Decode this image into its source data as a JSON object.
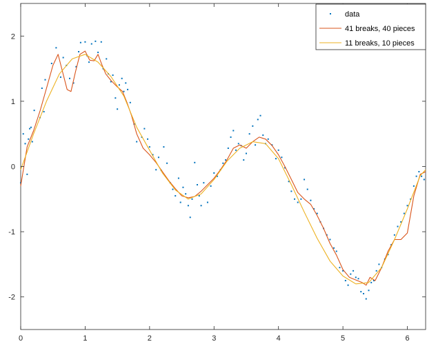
{
  "chart_data": {
    "type": "line",
    "title": "",
    "xlabel": "",
    "ylabel": "",
    "xlim": [
      0,
      6.2832
    ],
    "ylim": [
      -2.5,
      2.5
    ],
    "xticks": [
      0,
      1,
      2,
      3,
      4,
      5,
      6
    ],
    "yticks": [
      -2,
      -1,
      0,
      1,
      2
    ],
    "x_tick_labels": [
      "0",
      "1",
      "2",
      "3",
      "4",
      "5",
      "6"
    ],
    "y_tick_labels": [
      "-2",
      "-1",
      "0",
      "1",
      "2"
    ],
    "grid": false,
    "legend_position": "top-right",
    "series": [
      {
        "name": "data",
        "type": "scatter",
        "color": "#0072BD",
        "points": [
          [
            0.0,
            -0.25
          ],
          [
            0.04,
            0.5
          ],
          [
            0.07,
            0.35
          ],
          [
            0.1,
            -0.12
          ],
          [
            0.12,
            0.42
          ],
          [
            0.14,
            0.58
          ],
          [
            0.16,
            0.6
          ],
          [
            0.18,
            0.38
          ],
          [
            0.21,
            0.86
          ],
          [
            0.3,
            0.75
          ],
          [
            0.33,
            1.2
          ],
          [
            0.36,
            0.84
          ],
          [
            0.38,
            1.33
          ],
          [
            0.48,
            1.58
          ],
          [
            0.55,
            1.82
          ],
          [
            0.62,
            1.37
          ],
          [
            0.66,
            1.67
          ],
          [
            0.71,
            1.55
          ],
          [
            0.76,
            1.35
          ],
          [
            0.82,
            1.28
          ],
          [
            0.86,
            1.53
          ],
          [
            0.9,
            1.76
          ],
          [
            0.93,
            1.9
          ],
          [
            1.0,
            1.91
          ],
          [
            1.03,
            1.7
          ],
          [
            1.06,
            1.6
          ],
          [
            1.1,
            1.88
          ],
          [
            1.16,
            1.92
          ],
          [
            1.2,
            1.75
          ],
          [
            1.25,
            1.91
          ],
          [
            1.28,
            1.5
          ],
          [
            1.33,
            1.65
          ],
          [
            1.36,
            1.42
          ],
          [
            1.4,
            1.3
          ],
          [
            1.43,
            1.4
          ],
          [
            1.47,
            1.05
          ],
          [
            1.5,
            0.88
          ],
          [
            1.53,
            1.25
          ],
          [
            1.57,
            1.35
          ],
          [
            1.6,
            1.15
          ],
          [
            1.63,
            1.28
          ],
          [
            1.66,
            1.18
          ],
          [
            1.7,
            0.98
          ],
          [
            1.76,
            0.65
          ],
          [
            1.8,
            0.38
          ],
          [
            1.88,
            0.45
          ],
          [
            1.92,
            0.58
          ],
          [
            1.97,
            0.42
          ],
          [
            2.0,
            0.3
          ],
          [
            2.05,
            0.18
          ],
          [
            2.1,
            -0.05
          ],
          [
            2.14,
            0.14
          ],
          [
            2.18,
            -0.06
          ],
          [
            2.22,
            0.3
          ],
          [
            2.27,
            0.05
          ],
          [
            2.32,
            -0.25
          ],
          [
            2.36,
            -0.35
          ],
          [
            2.4,
            -0.45
          ],
          [
            2.45,
            -0.18
          ],
          [
            2.48,
            -0.55
          ],
          [
            2.52,
            -0.32
          ],
          [
            2.56,
            -0.42
          ],
          [
            2.6,
            -0.6
          ],
          [
            2.63,
            -0.78
          ],
          [
            2.66,
            -0.5
          ],
          [
            2.7,
            0.06
          ],
          [
            2.74,
            -0.28
          ],
          [
            2.77,
            -0.45
          ],
          [
            2.8,
            -0.6
          ],
          [
            2.84,
            -0.25
          ],
          [
            2.9,
            -0.55
          ],
          [
            2.95,
            -0.3
          ],
          [
            3.0,
            -0.1
          ],
          [
            3.05,
            -0.15
          ],
          [
            3.1,
            -0.05
          ],
          [
            3.14,
            0.05
          ],
          [
            3.18,
            0.1
          ],
          [
            3.22,
            0.28
          ],
          [
            3.26,
            0.45
          ],
          [
            3.3,
            0.55
          ],
          [
            3.34,
            0.25
          ],
          [
            3.38,
            0.35
          ],
          [
            3.42,
            0.32
          ],
          [
            3.46,
            0.1
          ],
          [
            3.5,
            0.2
          ],
          [
            3.55,
            0.5
          ],
          [
            3.6,
            0.62
          ],
          [
            3.64,
            0.33
          ],
          [
            3.68,
            0.72
          ],
          [
            3.72,
            0.78
          ],
          [
            3.76,
            0.48
          ],
          [
            3.8,
            0.35
          ],
          [
            3.84,
            0.42
          ],
          [
            3.9,
            0.33
          ],
          [
            3.96,
            0.12
          ],
          [
            4.0,
            0.25
          ],
          [
            4.05,
            0.14
          ],
          [
            4.1,
            -0.02
          ],
          [
            4.16,
            -0.23
          ],
          [
            4.2,
            -0.38
          ],
          [
            4.25,
            -0.5
          ],
          [
            4.3,
            -0.55
          ],
          [
            4.35,
            -0.5
          ],
          [
            4.4,
            -0.2
          ],
          [
            4.45,
            -0.35
          ],
          [
            4.5,
            -0.52
          ],
          [
            4.55,
            -0.65
          ],
          [
            4.6,
            -0.72
          ],
          [
            4.65,
            -0.85
          ],
          [
            4.7,
            -0.95
          ],
          [
            4.75,
            -1.05
          ],
          [
            4.8,
            -1.12
          ],
          [
            4.86,
            -1.25
          ],
          [
            4.9,
            -1.3
          ],
          [
            4.95,
            -1.55
          ],
          [
            5.0,
            -1.6
          ],
          [
            5.04,
            -1.75
          ],
          [
            5.08,
            -1.82
          ],
          [
            5.12,
            -1.65
          ],
          [
            5.16,
            -1.6
          ],
          [
            5.2,
            -1.7
          ],
          [
            5.24,
            -1.72
          ],
          [
            5.28,
            -1.92
          ],
          [
            5.32,
            -1.95
          ],
          [
            5.36,
            -2.03
          ],
          [
            5.4,
            -1.9
          ],
          [
            5.44,
            -1.78
          ],
          [
            5.48,
            -1.75
          ],
          [
            5.52,
            -1.6
          ],
          [
            5.56,
            -1.5
          ],
          [
            5.6,
            -1.55
          ],
          [
            5.65,
            -1.42
          ],
          [
            5.7,
            -1.35
          ],
          [
            5.75,
            -1.2
          ],
          [
            5.8,
            -1.05
          ],
          [
            5.85,
            -0.92
          ],
          [
            5.9,
            -0.85
          ],
          [
            5.95,
            -0.72
          ],
          [
            6.0,
            -0.6
          ],
          [
            6.05,
            -0.5
          ],
          [
            6.1,
            -0.3
          ],
          [
            6.14,
            -0.15
          ],
          [
            6.18,
            -0.08
          ],
          [
            6.22,
            -0.15
          ],
          [
            6.26,
            -0.2
          ]
        ]
      },
      {
        "name": "41 breaks, 40 pieces",
        "type": "line",
        "color": "#D95319",
        "points": [
          [
            0.0,
            -0.3
          ],
          [
            0.1,
            0.3
          ],
          [
            0.2,
            0.55
          ],
          [
            0.3,
            0.85
          ],
          [
            0.4,
            1.2
          ],
          [
            0.5,
            1.55
          ],
          [
            0.58,
            1.72
          ],
          [
            0.65,
            1.45
          ],
          [
            0.72,
            1.18
          ],
          [
            0.78,
            1.15
          ],
          [
            0.85,
            1.45
          ],
          [
            0.92,
            1.72
          ],
          [
            1.0,
            1.77
          ],
          [
            1.07,
            1.63
          ],
          [
            1.14,
            1.62
          ],
          [
            1.2,
            1.72
          ],
          [
            1.26,
            1.56
          ],
          [
            1.32,
            1.42
          ],
          [
            1.4,
            1.32
          ],
          [
            1.5,
            1.22
          ],
          [
            1.58,
            1.15
          ],
          [
            1.65,
            0.98
          ],
          [
            1.72,
            0.78
          ],
          [
            1.8,
            0.5
          ],
          [
            1.9,
            0.28
          ],
          [
            2.0,
            0.18
          ],
          [
            2.1,
            0.06
          ],
          [
            2.2,
            -0.08
          ],
          [
            2.3,
            -0.22
          ],
          [
            2.4,
            -0.34
          ],
          [
            2.5,
            -0.45
          ],
          [
            2.6,
            -0.48
          ],
          [
            2.7,
            -0.46
          ],
          [
            2.8,
            -0.38
          ],
          [
            2.9,
            -0.28
          ],
          [
            3.0,
            -0.18
          ],
          [
            3.1,
            -0.05
          ],
          [
            3.2,
            0.1
          ],
          [
            3.3,
            0.28
          ],
          [
            3.4,
            0.33
          ],
          [
            3.5,
            0.28
          ],
          [
            3.6,
            0.38
          ],
          [
            3.7,
            0.45
          ],
          [
            3.8,
            0.42
          ],
          [
            3.9,
            0.32
          ],
          [
            4.0,
            0.18
          ],
          [
            4.1,
            0.0
          ],
          [
            4.2,
            -0.2
          ],
          [
            4.3,
            -0.4
          ],
          [
            4.4,
            -0.5
          ],
          [
            4.5,
            -0.58
          ],
          [
            4.6,
            -0.75
          ],
          [
            4.7,
            -0.95
          ],
          [
            4.8,
            -1.18
          ],
          [
            4.9,
            -1.36
          ],
          [
            5.0,
            -1.58
          ],
          [
            5.1,
            -1.7
          ],
          [
            5.2,
            -1.74
          ],
          [
            5.3,
            -1.78
          ],
          [
            5.36,
            -1.82
          ],
          [
            5.42,
            -1.7
          ],
          [
            5.5,
            -1.75
          ],
          [
            5.6,
            -1.55
          ],
          [
            5.7,
            -1.3
          ],
          [
            5.8,
            -1.12
          ],
          [
            5.9,
            -1.12
          ],
          [
            6.0,
            -1.02
          ],
          [
            6.1,
            -0.45
          ],
          [
            6.2,
            -0.12
          ],
          [
            6.2832,
            -0.08
          ]
        ]
      },
      {
        "name": "11 breaks, 10 pieces",
        "type": "line",
        "color": "#EDB120",
        "points": [
          [
            0.0,
            -0.05
          ],
          [
            0.2,
            0.5
          ],
          [
            0.4,
            1.0
          ],
          [
            0.6,
            1.42
          ],
          [
            0.8,
            1.65
          ],
          [
            1.0,
            1.72
          ],
          [
            1.2,
            1.6
          ],
          [
            1.4,
            1.38
          ],
          [
            1.6,
            1.08
          ],
          [
            1.8,
            0.6
          ],
          [
            2.0,
            0.25
          ],
          [
            2.2,
            -0.1
          ],
          [
            2.4,
            -0.36
          ],
          [
            2.6,
            -0.5
          ],
          [
            2.8,
            -0.42
          ],
          [
            3.0,
            -0.2
          ],
          [
            3.2,
            0.08
          ],
          [
            3.4,
            0.28
          ],
          [
            3.6,
            0.38
          ],
          [
            3.8,
            0.35
          ],
          [
            4.0,
            0.12
          ],
          [
            4.2,
            -0.28
          ],
          [
            4.4,
            -0.7
          ],
          [
            4.6,
            -1.1
          ],
          [
            4.8,
            -1.45
          ],
          [
            5.0,
            -1.68
          ],
          [
            5.2,
            -1.8
          ],
          [
            5.4,
            -1.78
          ],
          [
            5.6,
            -1.55
          ],
          [
            5.8,
            -1.12
          ],
          [
            6.0,
            -0.65
          ],
          [
            6.2,
            -0.14
          ],
          [
            6.2832,
            -0.05
          ]
        ]
      }
    ]
  }
}
